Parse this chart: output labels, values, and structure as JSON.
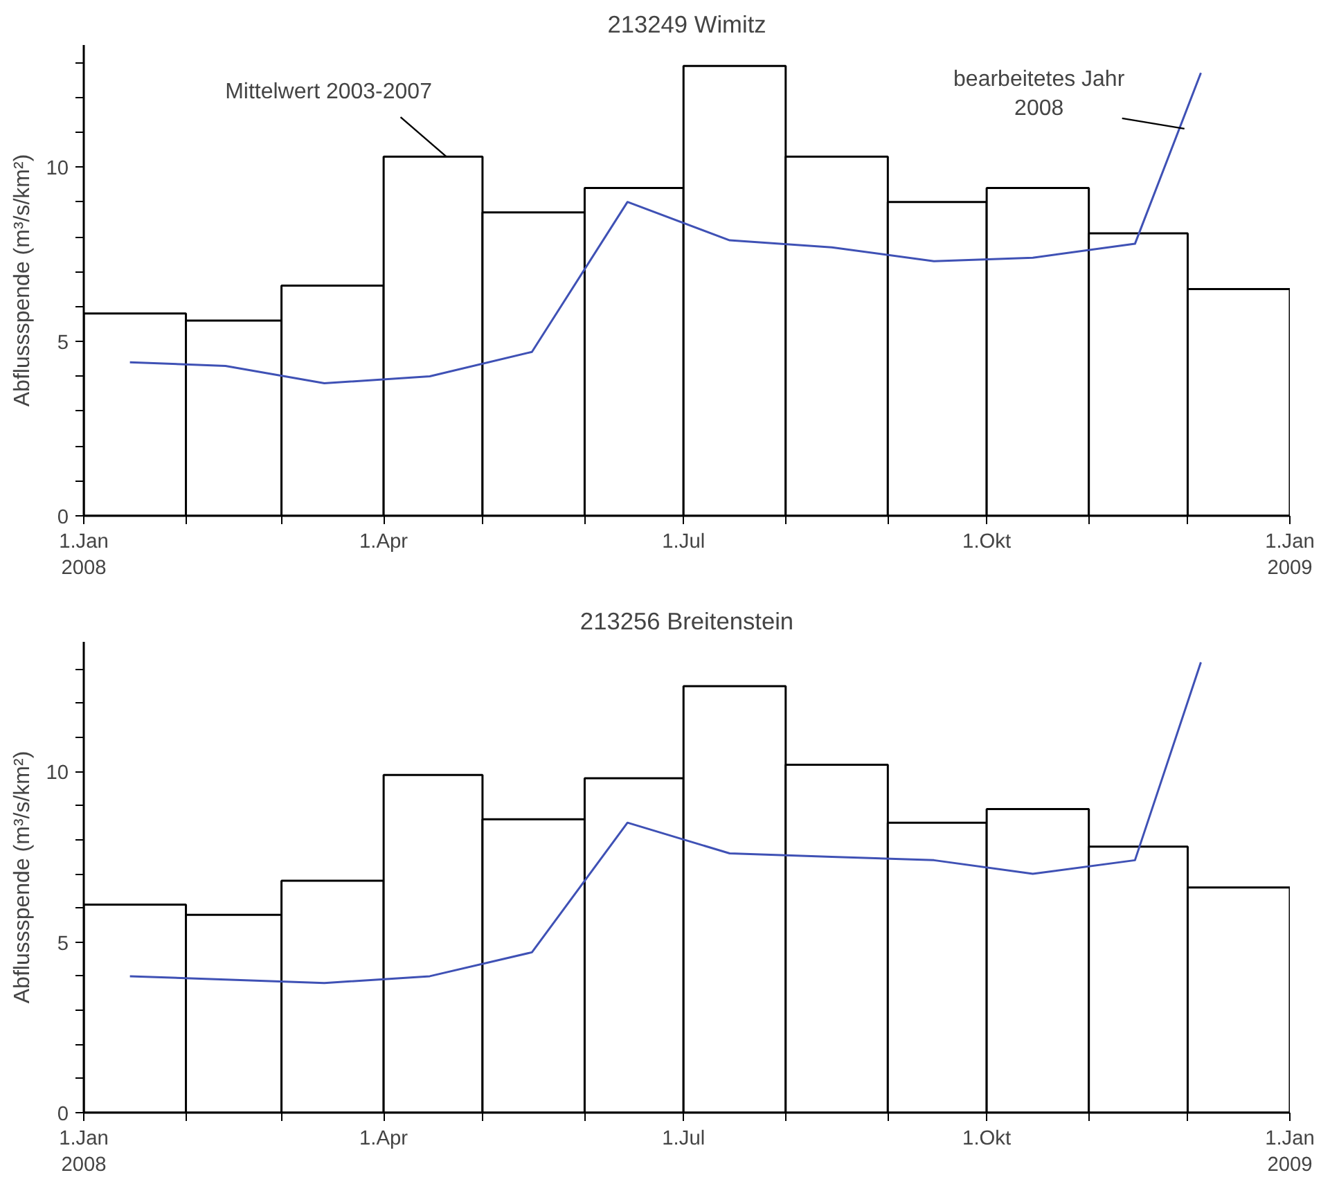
{
  "chart_data": [
    {
      "type": "bar",
      "title": "213249 Wimitz",
      "ylabel": "Abflussspende (m³/s/km²)",
      "x": [
        "2008-01-16",
        "2008-02-15",
        "2008-03-16",
        "2008-04-16",
        "2008-05-16",
        "2008-06-16",
        "2008-07-16",
        "2008-08-16",
        "2008-09-16",
        "2008-10-16",
        "2008-11-16",
        "2008-12-16"
      ],
      "series": [
        {
          "color": "#ffffff",
          "values": [
            5.8,
            5.6,
            6.6,
            10.3,
            8.7,
            9.4,
            12.9,
            10.3,
            9.0,
            9.4,
            8.1,
            6.5
          ]
        },
        {
          "type": "line",
          "color": "#3f51b5",
          "x": [
            "2008-01-15",
            "2008-02-13",
            "2008-03-14",
            "2008-04-15",
            "2008-05-16",
            "2008-06-14",
            "2008-07-15",
            "2008-08-15",
            "2008-09-15",
            "2008-10-15",
            "2008-11-15",
            "2008-12-05"
          ],
          "values": [
            4.4,
            4.3,
            3.8,
            4.0,
            4.7,
            9.0,
            7.9,
            7.7,
            7.3,
            7.4,
            7.8,
            12.7
          ]
        }
      ],
      "annotations": [
        {
          "text": "Mittelwert 2003-2007",
          "x": "2008-04-20",
          "y": 10.3
        },
        {
          "text": "bearbeitetes Jahr\n2008",
          "x": "2008-11-30",
          "y": 11.1
        }
      ],
      "xlim": [
        "2008-01-01",
        "2009-01-01"
      ],
      "xticks": [
        {
          "value": "2008-01-01",
          "label": "1.Jan\n2008"
        },
        {
          "value": "2008-02-01",
          "label": null
        },
        {
          "value": "2008-03-01",
          "label": null
        },
        {
          "value": "2008-04-01",
          "label": "1.Apr"
        },
        {
          "value": "2008-05-01",
          "label": null
        },
        {
          "value": "2008-06-01",
          "label": null
        },
        {
          "value": "2008-07-01",
          "label": "1.Jul"
        },
        {
          "value": "2008-08-01",
          "label": null
        },
        {
          "value": "2008-09-01",
          "label": null
        },
        {
          "value": "2008-10-01",
          "label": "1.Okt"
        },
        {
          "value": "2008-11-01",
          "label": null
        },
        {
          "value": "2008-12-01",
          "label": null
        },
        {
          "value": "2009-01-01",
          "label": "1.Jan\n2009"
        }
      ],
      "ylim": [
        0,
        13.5
      ],
      "yticks": [
        0,
        {
          "value": 1,
          "label": null
        },
        {
          "value": 2,
          "label": null
        },
        {
          "value": 3,
          "label": null
        },
        {
          "value": 4,
          "label": null
        },
        5,
        {
          "value": 6,
          "label": null
        },
        {
          "value": 7,
          "label": null
        },
        {
          "value": 8,
          "label": null
        },
        {
          "value": 9,
          "label": null
        },
        10,
        {
          "value": 11,
          "label": null
        },
        {
          "value": 12,
          "label": null
        },
        {
          "value": 13,
          "label": null
        }
      ],
      "grid": false,
      "marker": "none",
      "line_style": "solid"
    },
    {
      "type": "bar",
      "title": "213256 Breitenstein",
      "ylabel": "Abflussspende (m³/s/km²)",
      "x": [
        "2008-01-16",
        "2008-02-15",
        "2008-03-16",
        "2008-04-16",
        "2008-05-16",
        "2008-06-16",
        "2008-07-16",
        "2008-08-16",
        "2008-09-16",
        "2008-10-16",
        "2008-11-16",
        "2008-12-16"
      ],
      "series": [
        {
          "color": "#ffffff",
          "values": [
            6.1,
            5.8,
            6.8,
            9.9,
            8.6,
            9.8,
            12.5,
            10.2,
            8.5,
            8.9,
            7.8,
            6.6
          ]
        },
        {
          "type": "line",
          "color": "#3f51b5",
          "x": [
            "2008-01-15",
            "2008-02-13",
            "2008-03-14",
            "2008-04-15",
            "2008-05-16",
            "2008-06-14",
            "2008-07-15",
            "2008-08-15",
            "2008-09-15",
            "2008-10-15",
            "2008-11-15",
            "2008-12-05"
          ],
          "values": [
            4.0,
            3.9,
            3.8,
            4.0,
            4.7,
            8.5,
            7.6,
            7.5,
            7.4,
            7.0,
            7.4,
            13.2
          ]
        }
      ],
      "xlim": [
        "2008-01-01",
        "2009-01-01"
      ],
      "xticks": [
        {
          "value": "2008-01-01",
          "label": "1.Jan\n2008"
        },
        {
          "value": "2008-02-01",
          "label": null
        },
        {
          "value": "2008-03-01",
          "label": null
        },
        {
          "value": "2008-04-01",
          "label": "1.Apr"
        },
        {
          "value": "2008-05-01",
          "label": null
        },
        {
          "value": "2008-06-01",
          "label": null
        },
        {
          "value": "2008-07-01",
          "label": "1.Jul"
        },
        {
          "value": "2008-08-01",
          "label": null
        },
        {
          "value": "2008-09-01",
          "label": null
        },
        {
          "value": "2008-10-01",
          "label": "1.Okt"
        },
        {
          "value": "2008-11-01",
          "label": null
        },
        {
          "value": "2008-12-01",
          "label": null
        },
        {
          "value": "2009-01-01",
          "label": "1.Jan\n2009"
        }
      ],
      "ylim": [
        0,
        13.8
      ],
      "yticks": [
        0,
        {
          "value": 1,
          "label": null
        },
        {
          "value": 2,
          "label": null
        },
        {
          "value": 3,
          "label": null
        },
        {
          "value": 4,
          "label": null
        },
        5,
        {
          "value": 6,
          "label": null
        },
        {
          "value": 7,
          "label": null
        },
        {
          "value": 8,
          "label": null
        },
        {
          "value": 9,
          "label": null
        },
        10,
        {
          "value": 11,
          "label": null
        },
        {
          "value": 12,
          "label": null
        },
        {
          "value": 13,
          "label": null
        }
      ],
      "grid": false,
      "marker": "none",
      "line_style": "solid"
    }
  ]
}
